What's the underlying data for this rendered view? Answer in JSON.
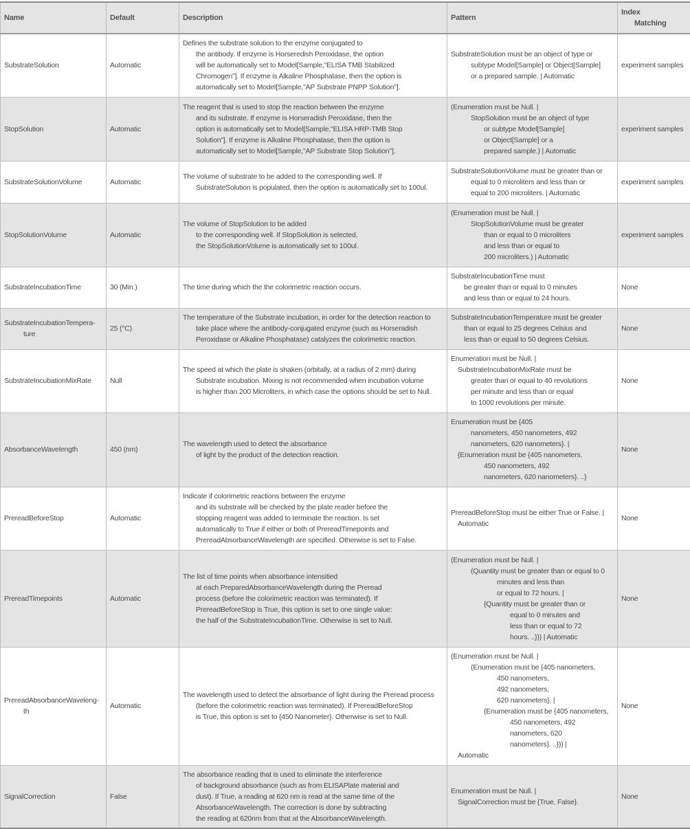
{
  "headers": {
    "name": "Name",
    "default": "Default",
    "description": "Description",
    "pattern": "Pattern",
    "index_1": "Index",
    "index_2": "Matching"
  },
  "rows": [
    {
      "name": [
        "SubstrateSolution"
      ],
      "default": "Automatic",
      "description": [
        "Defines the substrate solution to the enzyme conjugated to",
        "the antibody.  If enzyme is Horseredish Peroxidase, the option",
        "will be automatically set to Model[Sample,\"ELISA TMB Stabilized",
        "Chromogen\"]. If enzyme is Alkaline Phosphatase, then the option is",
        "automatically set to Model[Sample,\"AP Substrate PNPP Solution\"]."
      ],
      "pattern": [
        "SubstrateSolution must be an object of type or",
        "subtype Model[Sample] or Object[Sample]",
        "or a prepared sample.  | Automatic"
      ],
      "index": "experiment samples"
    },
    {
      "name": [
        "StopSolution"
      ],
      "default": "Automatic",
      "description": [
        "The reagent that is used to stop the reaction between the enzyme",
        "and its substrate.  If enzyme is Horseradish Peroxidase, then the",
        "option is automatically set to Model[Sample,\"ELISA HRP-TMB Stop",
        "Solution\"]. If enzyme is Alkaline Phosphatase, then the option is",
        "automatically set to Model[Sample,\"AP Substrate Stop Solution\"]."
      ],
      "pattern": [
        "(Enumeration must be Null.  |",
        "StopSolution must be an object of type",
        "or subtype Model[Sample]",
        "or Object[Sample] or a",
        "prepared sample.) | Automatic"
      ],
      "index": "experiment samples"
    },
    {
      "name": [
        "SubstrateSolutionVolume"
      ],
      "default": "Automatic",
      "description": [
        "The volume of substrate to be added to the corresponding well.  If",
        "SubstrateSolution is populated, then the option is automatically set to 100ul."
      ],
      "pattern": [
        "SubstrateSolutionVolume must be greater than or",
        "equal to 0 microliters and less than or",
        "equal to 200 microliters.  | Automatic"
      ],
      "index": "experiment samples"
    },
    {
      "name": [
        "StopSolutionVolume"
      ],
      "default": "Automatic",
      "description": [
        "The volume of StopSolution to be added",
        "to the corresponding well.  If StopSolution is selected,",
        "the StopSolutionVolume is automatically set to 100ul."
      ],
      "pattern": [
        "(Enumeration must be Null.  |",
        "StopSolutionVolume must be greater",
        "than or equal to 0 microliters",
        "and less than or equal to",
        "200 microliters.) | Automatic"
      ],
      "index": "experiment samples"
    },
    {
      "name": [
        "SubstrateIncubationTime"
      ],
      "default": "30 (Min.)",
      "description": [
        "The time during which the the colorimetric reaction occurs."
      ],
      "pattern": [
        "SubstrateIncubationTime must",
        "be greater than or equal to 0 minutes",
        "and less than or equal to 24 hours."
      ],
      "index": "None"
    },
    {
      "name": [
        "SubstrateIncubationTempera-",
        "ture"
      ],
      "default": "25 (°C)",
      "description": [
        "The temperature of the Substrate incubation, in order for the detection reaction to",
        "take place where the antibody-conjugated enzyme (such as Horseradish",
        "Peroxidase or Alkaline Phosphatase) catalyzes the colorimetric reaction."
      ],
      "pattern": [
        "SubstrateIncubationTemperature must be greater",
        "than or equal to 25 degrees Celsius and",
        "less than or equal to 50 degrees Celsius."
      ],
      "index": "None"
    },
    {
      "name": [
        "SubstrateIncubationMixRate"
      ],
      "default": "Null",
      "description": [
        "The speed at which the plate is shaken (orbitally, at a radius of 2 mm) during",
        "Substrate incubation. Mixing is not recommended when incubation volume",
        "is higher than 200 Microliters, in which case the options should be set to Null."
      ],
      "pattern": [
        "Enumeration must be Null.  |",
        "SubstrateIncubationMixRate must be",
        "greater than or equal to 40 revolutions",
        "per minute and less than or equal",
        "to 1000 revolutions per minute."
      ],
      "index": "None"
    },
    {
      "name": [
        "AbsorbanceWavelength"
      ],
      "default": "450 (nm)",
      "description": [
        "The wavelength used to detect the absorbance",
        "of light by the product of the detection reaction."
      ],
      "pattern": [
        "Enumeration must be {405",
        "nanometers, 450 nanometers, 492",
        "nanometers, 620 nanometers}.  |",
        "{Enumeration must be {405 nanometers,",
        "450 nanometers, 492",
        "nanometers, 620 nanometers}. ..}"
      ],
      "index": "None"
    },
    {
      "name": [
        "PrereadBeforeStop"
      ],
      "default": "Automatic",
      "description": [
        "Indicate if colorimetric reactions between the enzyme",
        "and its substrate will be checked by the plate reader before the",
        "stopping reagent was added to terminate the reaction.  Is set",
        "automatically to True if either or both of PrereadTimepoints and",
        "PrereadAbsorbanceWavelength are specified. Otherwise is set to False."
      ],
      "pattern": [
        "PrereadBeforeStop must be either True or False.  |",
        "Automatic"
      ],
      "index": "None"
    },
    {
      "name": [
        "PrereadTimepoints"
      ],
      "default": "Automatic",
      "description": [
        "The list of time points when absorbance intensitied",
        "at each PreparedAbsorbanceWavelength during the Preread",
        "process (before the colorimetric reaction was terminated).  If",
        "PrereadBeforeStop is True, this option is set to one single value:",
        "the half of the SubstrateIncubationTime. Otherwise is set to Null."
      ],
      "pattern": [
        "(Enumeration must be Null.  |",
        "(Quantity must be greater than or equal to 0",
        "minutes and less than",
        "or equal to 72 hours.  |",
        "{Quantity must be greater than or",
        "equal to 0 minutes and",
        "less than or equal to 72",
        "hours. ..})) | Automatic"
      ],
      "index": "None"
    },
    {
      "name": [
        "PrereadAbsorbanceWaveleng-",
        "th"
      ],
      "default": "Automatic",
      "description": [
        "The wavelength used to detect the absorbance of light during the Preread process",
        "(before the colorimetric reaction was terminated).  If PrereadBeforeStop",
        "is True, this option is set to {450 Nanometer}. Otherwise is set to Null."
      ],
      "pattern": [
        "(Enumeration must be Null.  |",
        "(Enumeration must be {405 nanometers,",
        "450 nanometers,",
        "492 nanometers,",
        "620 nanometers}.  |",
        "{Enumeration must be {405 nanometers,",
        "450 nanometers, 492",
        "nanometers, 620",
        "nanometers}. ..})) |",
        "Automatic"
      ],
      "index": "None"
    },
    {
      "name": [
        "SignalCorrection"
      ],
      "default": "False",
      "description": [
        "The absorbance reading that is used to eliminate the interference",
        "of background absorbance (such as from ELISAPlate material and",
        "dust). If True, a reading at 620 nm is read at the same time of the",
        "AbsorbanceWavelength. The correction is done by subtracting",
        "the reading at 620nm from that at the AbsorbanceWavelength."
      ],
      "pattern": [
        "Enumeration must be Null.  |",
        "SignalCorrection must be {True, False}."
      ],
      "index": "None"
    }
  ]
}
